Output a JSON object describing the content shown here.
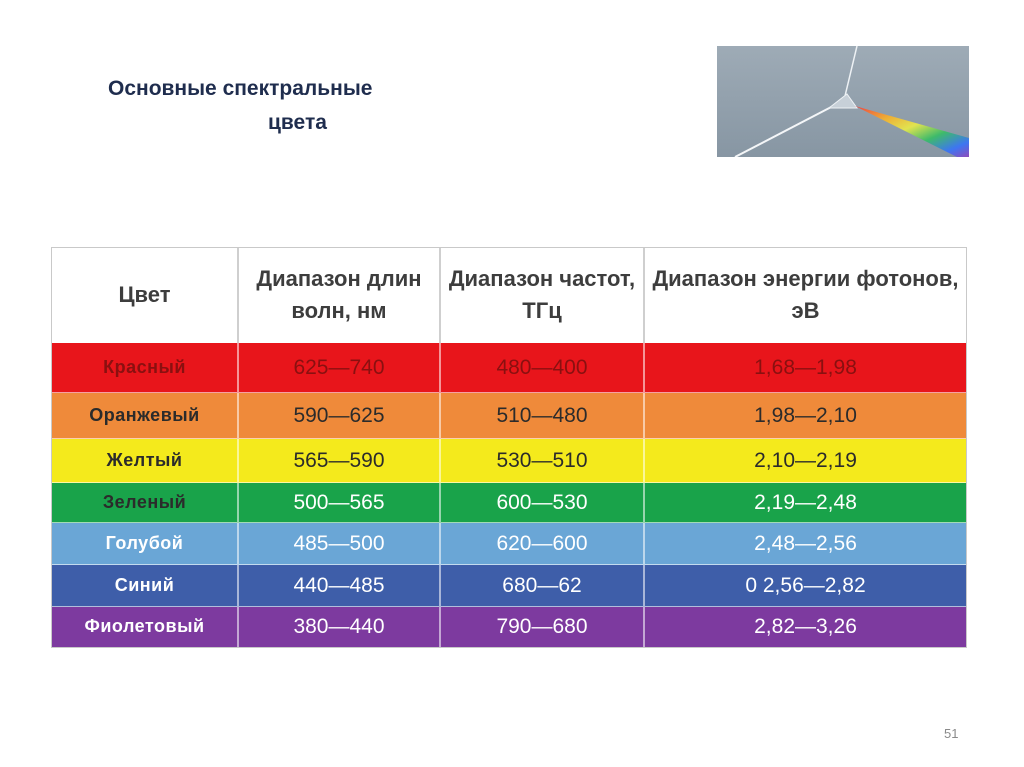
{
  "title": {
    "line1": "Основные спектральные",
    "line2": "цвета"
  },
  "photo": {
    "icon": "prism-dispersion-photo"
  },
  "table": {
    "headers": [
      "Цвет",
      "Диапазон длин волн, нм",
      "Диапазон частот, ТГц",
      "Диапазон энергии фотонов, эВ"
    ],
    "rows": [
      {
        "color": "Красный",
        "wavelength": "625—740",
        "frequency": "480—400",
        "energy": "1,68—1,98",
        "bg": "#e8151b"
      },
      {
        "color": "Оранжевый",
        "wavelength": "590—625",
        "frequency": "510—480",
        "energy": "1,98—2,10",
        "bg": "#ef8a3a"
      },
      {
        "color": "Желтый",
        "wavelength": "565—590",
        "frequency": "530—510",
        "energy": "2,10—2,19",
        "bg": "#f4ea1c"
      },
      {
        "color": "Зеленый",
        "wavelength": "500—565",
        "frequency": "600—530",
        "energy": "2,19—2,48",
        "bg": "#19a34a"
      },
      {
        "color": "Голубой",
        "wavelength": "485—500",
        "frequency": "620—600",
        "energy": "2,48—2,56",
        "bg": "#6aa6d6"
      },
      {
        "color": "Синий",
        "wavelength": "440—485",
        "frequency": "680—62",
        "energy": "0 2,56—2,82",
        "bg": "#3e5ea9"
      },
      {
        "color": "Фиолетовый",
        "wavelength": "380—440",
        "frequency": "790—680",
        "energy": "2,82—3,26",
        "bg": "#7d3a9f"
      }
    ]
  },
  "page_number": "51"
}
